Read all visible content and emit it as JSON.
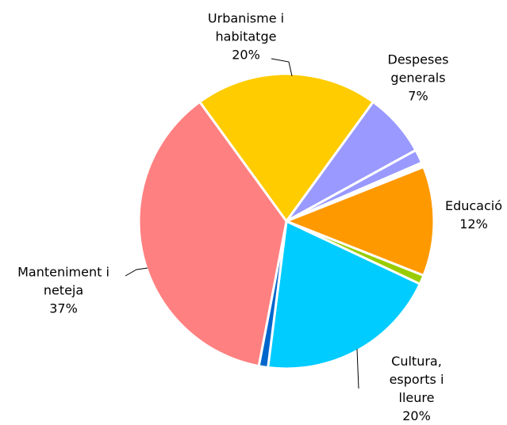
{
  "chart_data": {
    "type": "pie",
    "categories": [
      "Urbanisme i\nhabitatge",
      "Despeses\ngenerals",
      null,
      null,
      "Educació",
      null,
      "Cultura,\nesports i lleure",
      null,
      "Manteniment i\nneteja"
    ],
    "values": [
      20,
      7,
      1.5,
      0.5,
      12,
      1,
      20,
      1,
      37
    ],
    "value_labels": [
      "20%",
      "7%",
      null,
      null,
      "12%",
      null,
      "20%",
      null,
      "37%"
    ],
    "colors": [
      "#ffcc00",
      "#9999ff",
      "#9999ff",
      "#ffffff",
      "#ff9900",
      "#99cc00",
      "#00ccff",
      "#0066cc",
      "#ff8080"
    ]
  }
}
